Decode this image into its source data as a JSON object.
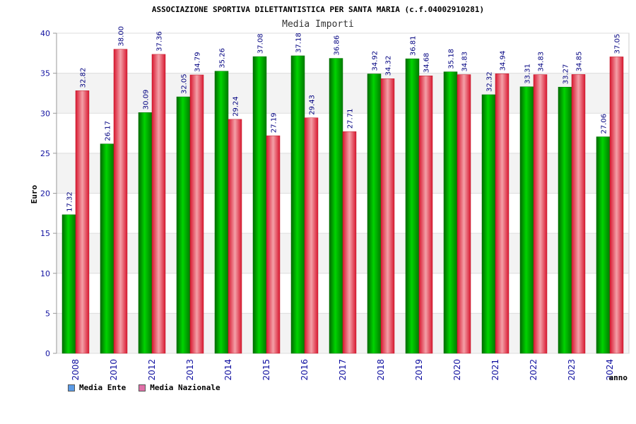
{
  "colors": {
    "ente_legend": "#5b9be6",
    "nazionale_legend": "#e070a8",
    "ente_bar": "#00b000",
    "nazionale_bar": "#e83040"
  },
  "chart_data": {
    "type": "bar",
    "title": "ASSOCIAZIONE SPORTIVA DILETTANTISTICA PER SANTA MARIA (c.f.04002910281)",
    "subtitle": "Media Importi",
    "xlabel": "anno",
    "ylabel": "Euro",
    "ylim": [
      0,
      40
    ],
    "yticks": [
      0,
      5,
      10,
      15,
      20,
      25,
      30,
      35,
      40
    ],
    "grid": true,
    "legend_position": "bottom-left",
    "categories": [
      "2008",
      "2010",
      "2012",
      "2013",
      "2014",
      "2015",
      "2016",
      "2017",
      "2018",
      "2019",
      "2020",
      "2021",
      "2022",
      "2023",
      "2024"
    ],
    "series": [
      {
        "name": "Media Ente",
        "values": [
          17.32,
          26.17,
          30.09,
          32.05,
          35.26,
          37.08,
          37.18,
          36.86,
          34.92,
          36.81,
          35.18,
          32.32,
          33.31,
          33.27,
          27.06
        ],
        "labels": [
          "17.32",
          "26.17",
          "30.09",
          "32.05",
          "35.26",
          "37.08",
          "37.18",
          "36.86",
          "34.92",
          "36.81",
          "35.18",
          "32.32",
          "33.31",
          "33.27",
          "27.06"
        ]
      },
      {
        "name": "Media Nazionale",
        "values": [
          32.82,
          38.0,
          37.36,
          34.79,
          29.24,
          27.19,
          29.43,
          27.71,
          34.32,
          34.68,
          34.83,
          34.94,
          34.83,
          34.85,
          37.05
        ],
        "labels": [
          "32.82",
          "38.00",
          "37.36",
          "34.79",
          "29.24",
          "27.19",
          "29.43",
          "27.71",
          "34.32",
          "34.68",
          "34.83",
          "34.94",
          "34.83",
          "34.85",
          "37.05"
        ]
      }
    ]
  }
}
